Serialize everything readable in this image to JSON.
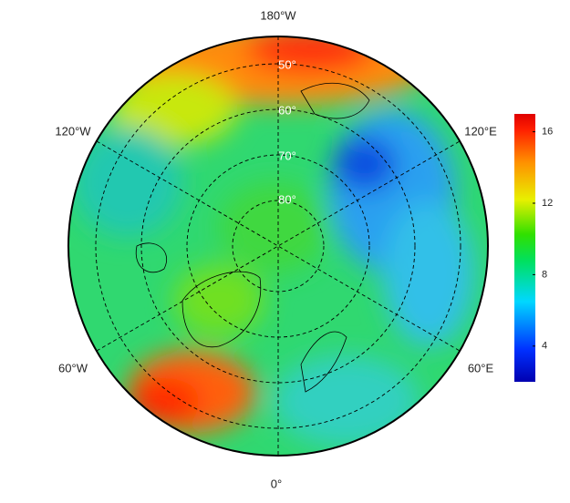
{
  "map": {
    "meridian_labels": [
      "180°W",
      "120°W",
      "120°E",
      "60°W",
      "60°E",
      "0°"
    ],
    "parallel_labels": [
      "50°",
      "60°",
      "70°",
      "80°"
    ],
    "colorbar": {
      "range": [
        2,
        17
      ],
      "ticks": [
        4,
        8,
        12,
        16
      ]
    }
  }
}
